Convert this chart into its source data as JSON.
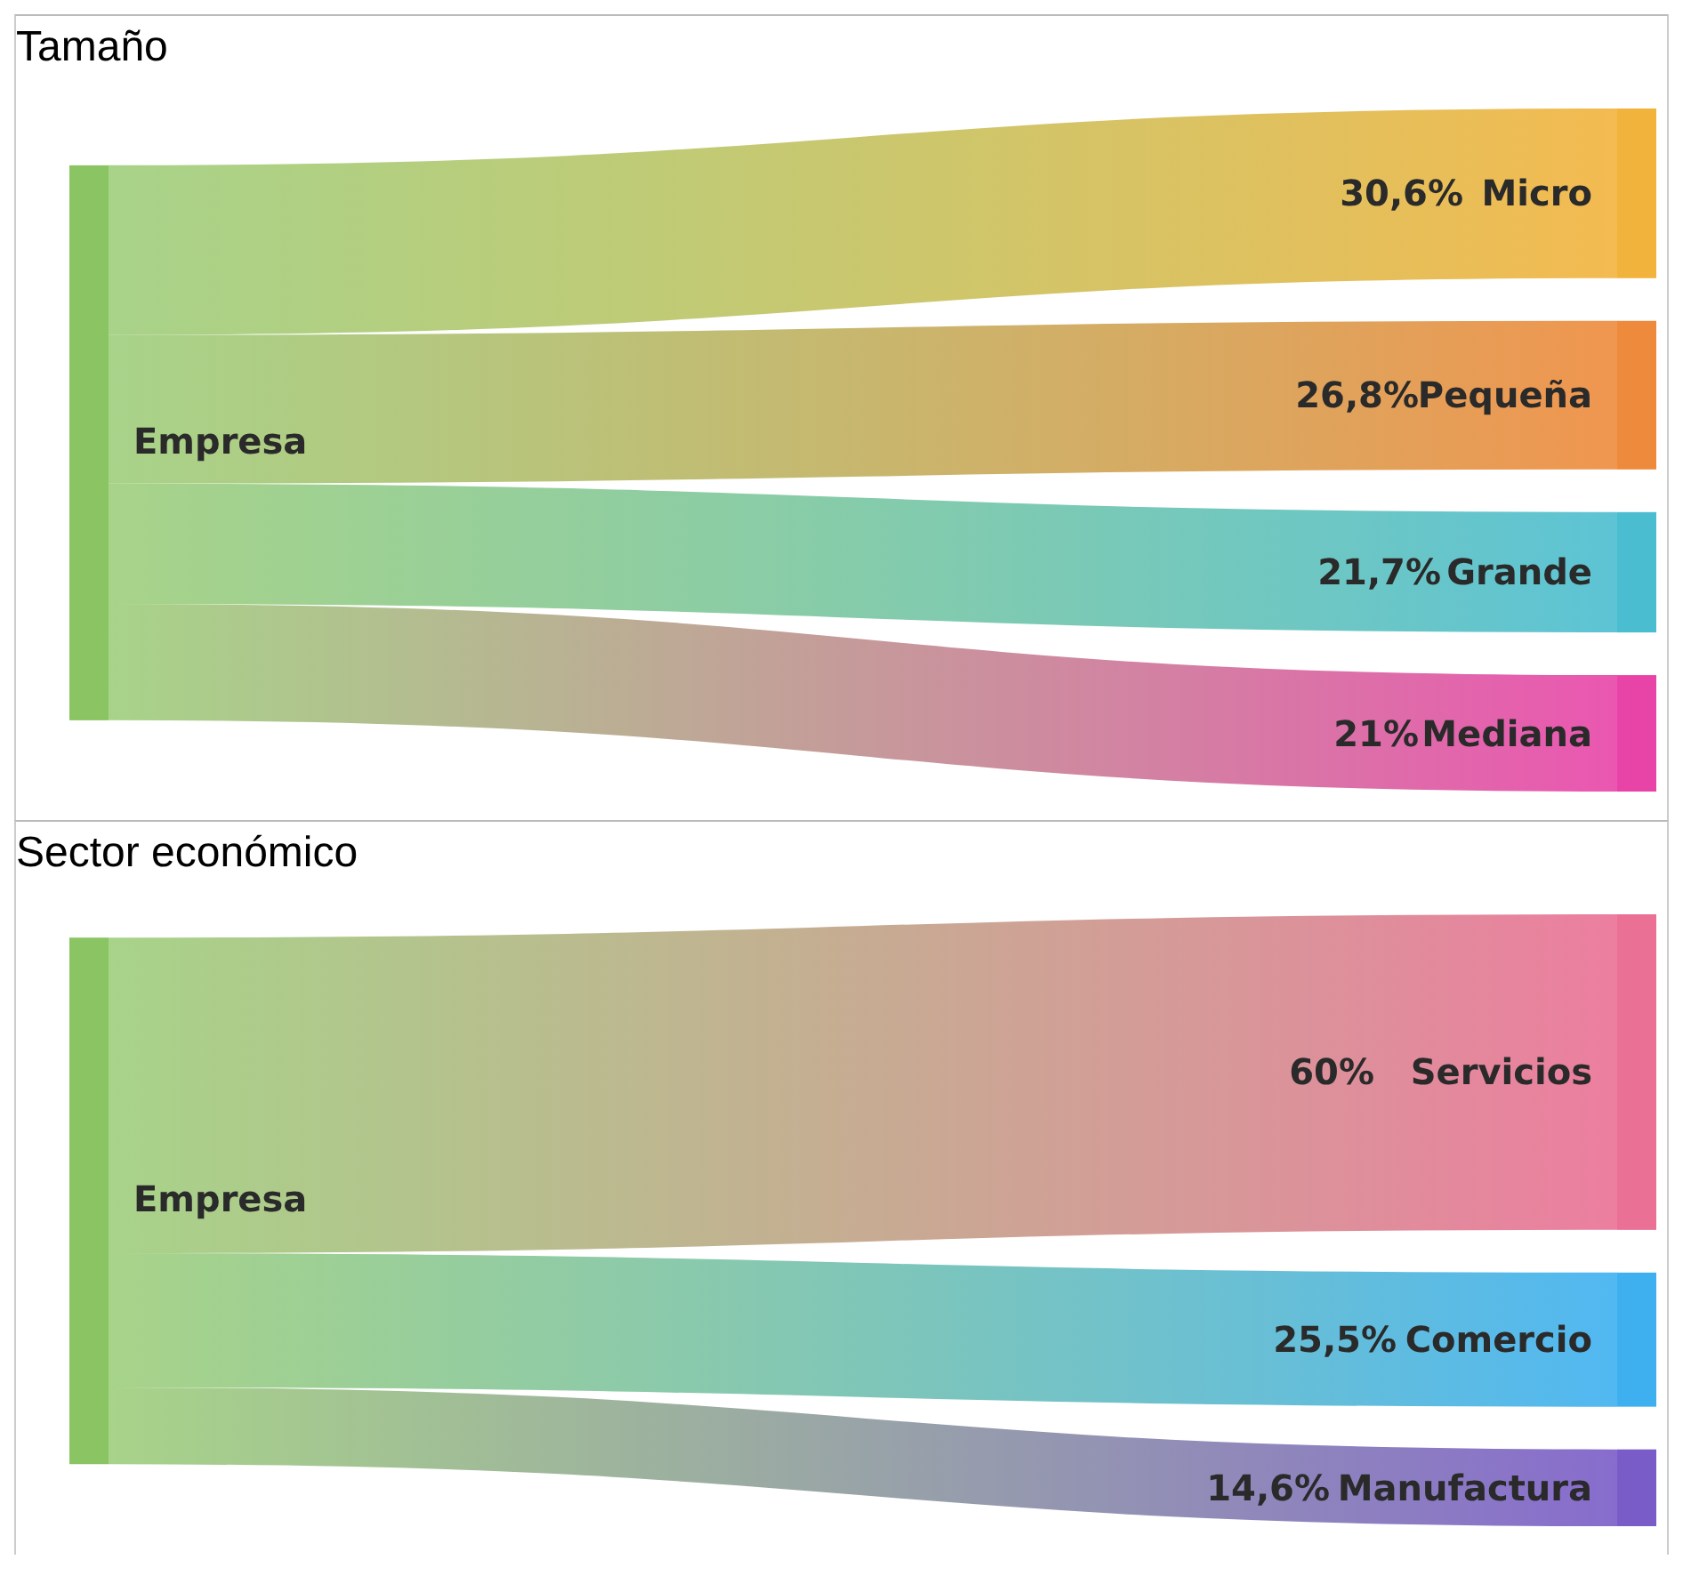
{
  "chart_data": [
    {
      "type": "other",
      "title": "Tamaño",
      "annotations": [
        "Empresa"
      ],
      "categories": [
        "Micro",
        "Pequeña",
        "Grande",
        "Mediana"
      ],
      "values": [
        30.6,
        26.8,
        21.7,
        21
      ],
      "value_labels": [
        "30,6%",
        "26,8%",
        "21,7%",
        "21%"
      ],
      "colors": [
        "#f2b33d",
        "#ee8a3c",
        "#4bbdd0",
        "#e844a8"
      ],
      "color": "#8bc462"
    },
    {
      "type": "other",
      "title": "Sector económico",
      "annotations": [
        "Empresa"
      ],
      "categories": [
        "Servicios",
        "Comercio",
        "Manufactura"
      ],
      "values": [
        60,
        25.5,
        14.6
      ],
      "value_labels": [
        "60%",
        "25,5%",
        "14,6%"
      ],
      "colors": [
        "#ea7095",
        "#3eb0f0",
        "#7a5cc8"
      ],
      "color": "#8bc462"
    }
  ]
}
